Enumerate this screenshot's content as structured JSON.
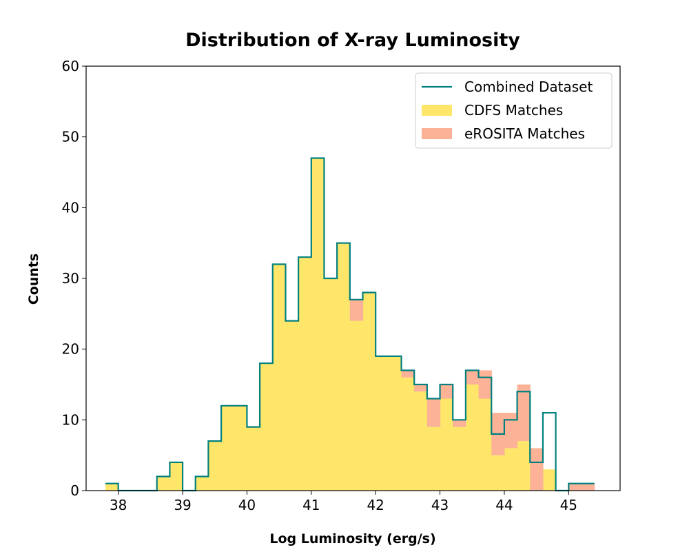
{
  "chart_data": {
    "type": "histogram",
    "title": "Distribution of X-ray Luminosity",
    "xlabel": "Log Luminosity (erg/s)",
    "ylabel": "Counts",
    "xlim": [
      37.5,
      45.8
    ],
    "ylim": [
      0,
      60
    ],
    "xticks": [
      38,
      39,
      40,
      41,
      42,
      43,
      44,
      45
    ],
    "yticks": [
      0,
      10,
      20,
      30,
      40,
      50,
      60
    ],
    "bin_edges": [
      37.8,
      38.0,
      38.2,
      38.4,
      38.6,
      38.8,
      39.0,
      39.2,
      39.4,
      39.6,
      39.8,
      40.0,
      40.2,
      40.4,
      40.6,
      40.8,
      41.0,
      41.2,
      41.4,
      41.6,
      41.8,
      42.0,
      42.2,
      42.4,
      42.6,
      42.8,
      43.0,
      43.2,
      43.4,
      43.6,
      43.8,
      44.0,
      44.2,
      44.4,
      44.6,
      44.8,
      45.0,
      45.2,
      45.4
    ],
    "grid": false,
    "legend_position": "top-right",
    "series": [
      {
        "name": "Combined Dataset",
        "style": "step",
        "color": "#00807f",
        "values": [
          1,
          0,
          0,
          0,
          2,
          4,
          0,
          2,
          7,
          12,
          12,
          9,
          18,
          32,
          24,
          33,
          47,
          30,
          35,
          27,
          28,
          19,
          19,
          17,
          15,
          13,
          15,
          10,
          17,
          16,
          8,
          10,
          14,
          4,
          11,
          0,
          1,
          1
        ]
      },
      {
        "name": "CDFS Matches",
        "style": "fill",
        "color": "#fde66a",
        "values": [
          1,
          0,
          0,
          0,
          2,
          4,
          0,
          2,
          7,
          12,
          12,
          9,
          18,
          32,
          24,
          33,
          47,
          30,
          35,
          24,
          28,
          19,
          19,
          16,
          14,
          9,
          13,
          9,
          15,
          13,
          5,
          6,
          7,
          0,
          3,
          0,
          0,
          0
        ]
      },
      {
        "name": "eROSITA Matches",
        "style": "fill",
        "color": "#fbb297",
        "values": [
          0,
          0,
          0,
          0,
          0,
          0,
          0,
          0,
          0,
          0,
          0,
          0,
          0,
          0,
          0,
          0,
          0,
          0,
          0,
          3,
          0,
          0,
          0,
          1,
          1,
          4,
          2,
          1,
          2,
          4,
          6,
          5,
          8,
          6,
          0,
          0,
          1,
          1
        ]
      }
    ]
  }
}
